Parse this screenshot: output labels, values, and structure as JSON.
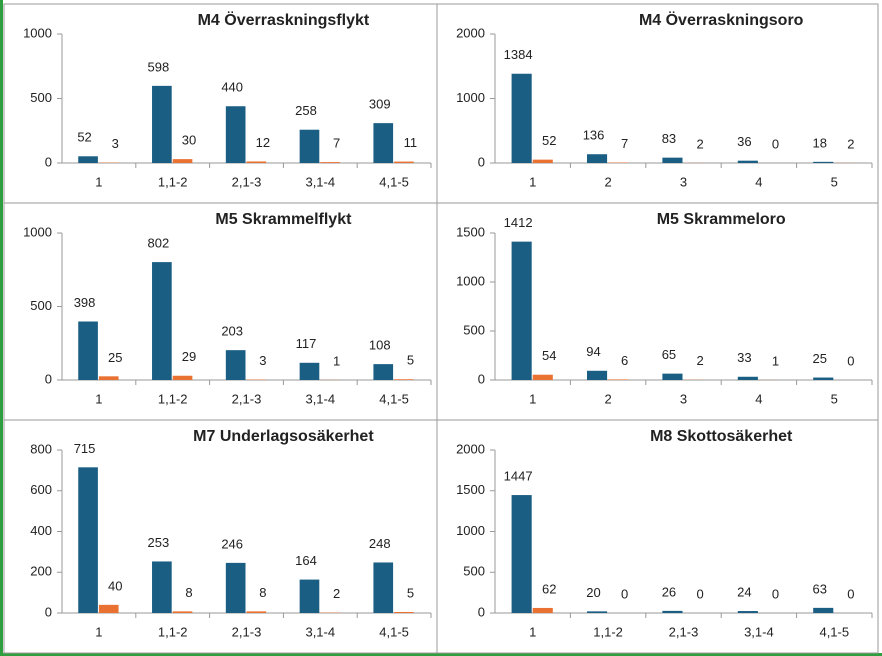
{
  "chart_data": [
    {
      "type": "bar",
      "title": "M4 Överraskningsflykt",
      "categories": [
        "1",
        "1,1-2",
        "2,1-3",
        "3,1-4",
        "4,1-5"
      ],
      "series": [
        {
          "color": "#1b5e84",
          "values": [
            52,
            598,
            440,
            258,
            309
          ]
        },
        {
          "color": "#e97132",
          "values": [
            3,
            30,
            12,
            7,
            11
          ]
        }
      ],
      "ylim": [
        0,
        1000
      ],
      "yticks": [
        0,
        500,
        1000
      ]
    },
    {
      "type": "bar",
      "title": "M4 Överraskningsoro",
      "categories": [
        "1",
        "2",
        "3",
        "4",
        "5"
      ],
      "series": [
        {
          "color": "#1b5e84",
          "values": [
            1384,
            136,
            83,
            36,
            18
          ]
        },
        {
          "color": "#e97132",
          "values": [
            52,
            7,
            2,
            0,
            2
          ]
        }
      ],
      "ylim": [
        0,
        2000
      ],
      "yticks": [
        0,
        1000,
        2000
      ]
    },
    {
      "type": "bar",
      "title": "M5 Skrammelflykt",
      "categories": [
        "1",
        "1,1-2",
        "2,1-3",
        "3,1-4",
        "4,1-5"
      ],
      "series": [
        {
          "color": "#1b5e84",
          "values": [
            398,
            802,
            203,
            117,
            108
          ]
        },
        {
          "color": "#e97132",
          "values": [
            25,
            29,
            3,
            1,
            5
          ]
        }
      ],
      "ylim": [
        0,
        1000
      ],
      "yticks": [
        0,
        500,
        1000
      ]
    },
    {
      "type": "bar",
      "title": "M5 Skrammeloro",
      "categories": [
        "1",
        "2",
        "3",
        "4",
        "5"
      ],
      "series": [
        {
          "color": "#1b5e84",
          "values": [
            1412,
            94,
            65,
            33,
            25
          ]
        },
        {
          "color": "#e97132",
          "values": [
            54,
            6,
            2,
            1,
            0
          ]
        }
      ],
      "ylim": [
        0,
        1500
      ],
      "yticks": [
        0,
        500,
        1000,
        1500
      ]
    },
    {
      "type": "bar",
      "title": "M7 Underlagsosäkerhet",
      "categories": [
        "1",
        "1,1-2",
        "2,1-3",
        "3,1-4",
        "4,1-5"
      ],
      "series": [
        {
          "color": "#1b5e84",
          "values": [
            715,
            253,
            246,
            164,
            248
          ]
        },
        {
          "color": "#e97132",
          "values": [
            40,
            8,
            8,
            2,
            5
          ]
        }
      ],
      "ylim": [
        0,
        800
      ],
      "yticks": [
        0,
        200,
        400,
        600,
        800
      ]
    },
    {
      "type": "bar",
      "title": "M8 Skottosäkerhet",
      "categories": [
        "1",
        "1,1-2",
        "2,1-3",
        "3,1-4",
        "4,1-5"
      ],
      "series": [
        {
          "color": "#1b5e84",
          "values": [
            1447,
            20,
            26,
            24,
            63
          ]
        },
        {
          "color": "#e97132",
          "values": [
            62,
            0,
            0,
            0,
            0
          ]
        }
      ],
      "ylim": [
        0,
        2000
      ],
      "yticks": [
        0,
        500,
        1000,
        1500,
        2000
      ]
    }
  ]
}
